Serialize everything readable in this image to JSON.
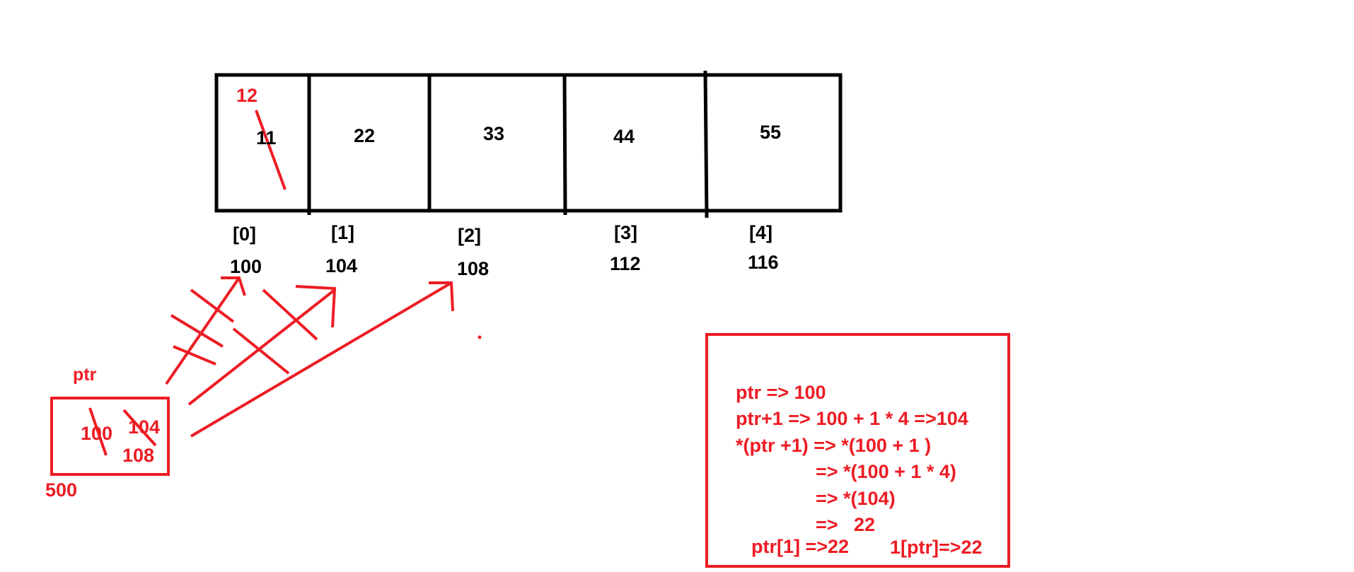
{
  "colors": {
    "ink": "#000000",
    "annotation": "#ed1c24",
    "background": "#ffffff"
  },
  "array": {
    "values": [
      "11",
      "22",
      "33",
      "44",
      "55"
    ],
    "indices": [
      "[0]",
      "[1]",
      "[2]",
      "[3]",
      "[4]"
    ],
    "addresses": [
      "100",
      "104",
      "108",
      "112",
      "116"
    ],
    "overwritten_value": "12"
  },
  "pointer": {
    "name": "ptr",
    "address": "500",
    "values": [
      "100",
      "104",
      "108"
    ]
  },
  "explanation": {
    "lines": [
      "ptr => 100",
      "ptr+1 => 100 + 1 * 4 =>104",
      "*(ptr +1) => *(100 + 1 )",
      "=> *(100 + 1 * 4)",
      "=> *(104)",
      "=>   22"
    ],
    "footer_left": "ptr[1] =>22",
    "footer_right": "1[ptr]=>22"
  }
}
